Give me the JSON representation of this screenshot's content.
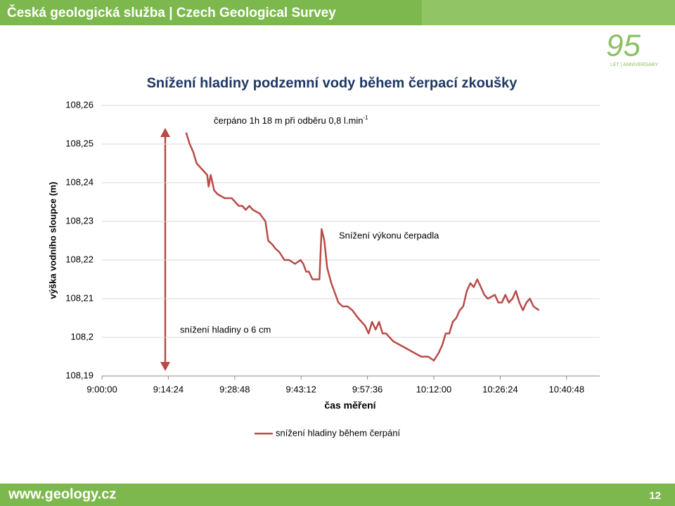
{
  "header": {
    "title": "Česká geologická služba | Czech Geological Survey",
    "logo_number": "95",
    "logo_text": "LET | ANNIVERSARY"
  },
  "footer": {
    "url": "www.geology.cz",
    "page": "12"
  },
  "chart_data": {
    "type": "line",
    "title": "Snížení hladiny podzemní vody během čerpací zkoušky",
    "x_label": "čas měření",
    "y_label": "výška vodního sloupce (m)",
    "annotations": [
      {
        "text": "čerpáno 1h 18 m při odběru 0,8 l.min",
        "sup": "-1"
      },
      {
        "text": "Snížení výkonu čerpadla"
      },
      {
        "text": "snížení hladiny o 6 cm"
      }
    ],
    "xlim": [
      32400,
      38880
    ],
    "xticks": [
      {
        "value": 32400,
        "label": "9:00:00"
      },
      {
        "value": 33264,
        "label": "9:14:24"
      },
      {
        "value": 34128,
        "label": "9:28:48"
      },
      {
        "value": 34992,
        "label": "9:43:12"
      },
      {
        "value": 35856,
        "label": "9:57:36"
      },
      {
        "value": 36720,
        "label": "10:12:00"
      },
      {
        "value": 37584,
        "label": "10:26:24"
      },
      {
        "value": 38448,
        "label": "10:40:48"
      }
    ],
    "ylim": [
      108.19,
      108.26
    ],
    "yticks": [
      {
        "value": 108.19,
        "label": "108,19"
      },
      {
        "value": 108.2,
        "label": "108,2"
      },
      {
        "value": 108.21,
        "label": "108,21"
      },
      {
        "value": 108.22,
        "label": "108,22"
      },
      {
        "value": 108.23,
        "label": "108,23"
      },
      {
        "value": 108.24,
        "label": "108,24"
      },
      {
        "value": 108.25,
        "label": "108,25"
      },
      {
        "value": 108.26,
        "label": "108,26"
      }
    ],
    "grid": true,
    "legend": "bottom",
    "series": [
      {
        "name": "snížení hladiny během čerpání",
        "color": "#b94a48",
        "x": [
          33496,
          33542,
          33587,
          33633,
          33679,
          33724,
          33770,
          33788,
          33816,
          33861,
          33907,
          33998,
          34090,
          34135,
          34181,
          34227,
          34272,
          34318,
          34364,
          34455,
          34528,
          34565,
          34619,
          34656,
          34711,
          34775,
          34839,
          34912,
          34985,
          35021,
          35058,
          35094,
          35140,
          35186,
          35231,
          35259,
          35295,
          35332,
          35386,
          35441,
          35478,
          35533,
          35597,
          35660,
          35734,
          35779,
          35825,
          35871,
          35916,
          35962,
          36007,
          36053,
          36099,
          36190,
          36282,
          36373,
          36464,
          36556,
          36647,
          36720,
          36784,
          36830,
          36875,
          36921,
          36966,
          37012,
          37058,
          37103,
          37149,
          37195,
          37240,
          37286,
          37332,
          37377,
          37423,
          37514,
          37560,
          37606,
          37651,
          37697,
          37743,
          37788,
          37834,
          37880,
          37925,
          37971,
          38017,
          38090
        ],
        "values": [
          108.253,
          108.25,
          108.248,
          108.245,
          108.244,
          108.243,
          108.242,
          108.239,
          108.242,
          108.238,
          108.237,
          108.236,
          108.236,
          108.235,
          108.234,
          108.234,
          108.233,
          108.234,
          108.233,
          108.232,
          108.23,
          108.225,
          108.224,
          108.223,
          108.222,
          108.22,
          108.22,
          108.219,
          108.22,
          108.219,
          108.217,
          108.217,
          108.215,
          108.215,
          108.215,
          108.228,
          108.225,
          108.218,
          108.214,
          108.211,
          108.209,
          108.208,
          108.208,
          108.207,
          108.205,
          108.204,
          108.203,
          108.201,
          108.204,
          108.202,
          108.204,
          108.201,
          108.201,
          108.199,
          108.198,
          108.197,
          108.196,
          108.195,
          108.195,
          108.194,
          108.196,
          108.198,
          108.201,
          108.201,
          108.204,
          108.205,
          108.207,
          108.208,
          108.212,
          108.214,
          108.213,
          108.215,
          108.213,
          108.211,
          108.21,
          108.211,
          108.209,
          108.209,
          108.211,
          108.209,
          108.21,
          108.212,
          108.209,
          108.207,
          108.209,
          108.21,
          108.208,
          108.207
        ]
      }
    ]
  }
}
